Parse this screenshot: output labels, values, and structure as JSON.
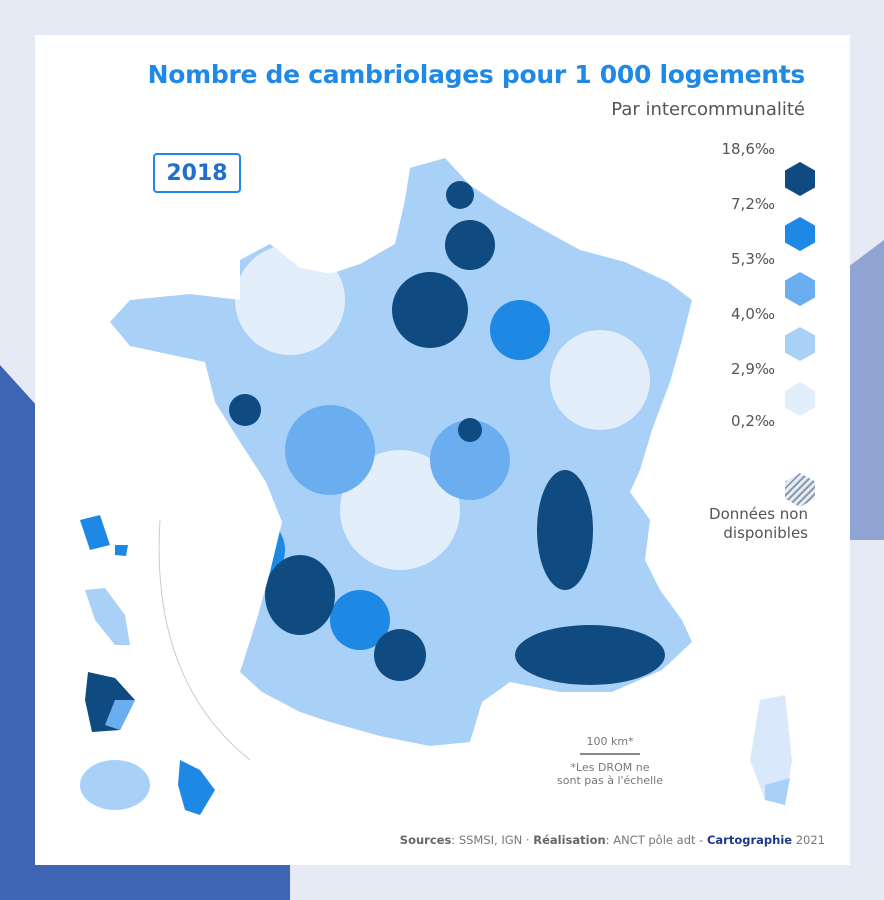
{
  "title": "Nombre de cambriolages pour 1 000 logements",
  "subtitle": "Par intercommunalité",
  "year": "2018",
  "legend": {
    "breaks": [
      "18,6‰",
      "7,2‰",
      "5,3‰",
      "4,0‰",
      "2,9‰",
      "0,2‰"
    ],
    "colors": [
      "#0f4a80",
      "#1e88e5",
      "#6aaef0",
      "#a9d0f7",
      "#e3eefb"
    ],
    "no_data_label_1": "Données non",
    "no_data_label_2": "disponibles"
  },
  "scale": {
    "label": "100 km*",
    "note_1": "*Les DROM ne",
    "note_2": "sont pas à l'échelle"
  },
  "sources": {
    "sources_label": "Sources",
    "sources_value": ": SSMSI, IGN · ",
    "realisation_label": "Réalisation",
    "realisation_value": ": ANCT pôle adt - ",
    "carto_label": "Cartographie",
    "carto_year": " 2021"
  }
}
